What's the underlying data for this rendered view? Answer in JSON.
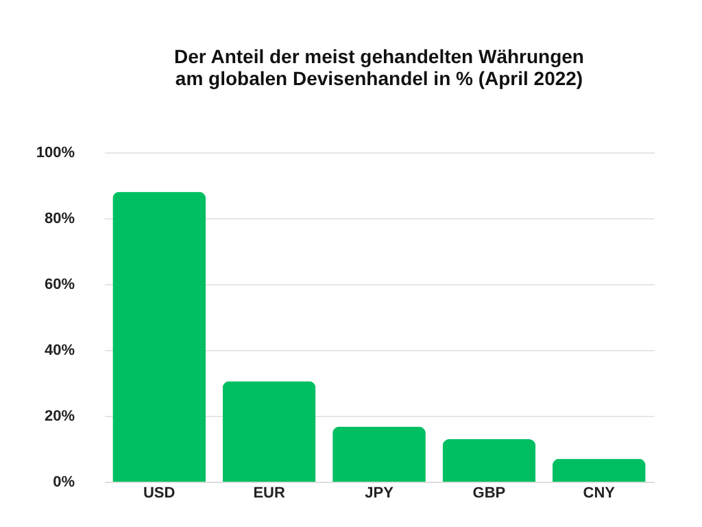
{
  "chart_data": {
    "type": "bar",
    "title": "Der Anteil der meist gehandelten Währungen\nam globalen Devisenhandel in % (April 2022)",
    "categories": [
      "USD",
      "EUR",
      "JPY",
      "GBP",
      "CNY"
    ],
    "values": [
      88,
      30.5,
      16.7,
      12.9,
      7
    ],
    "color": "#00bf63",
    "ylim": [
      0,
      100
    ],
    "yticks": [
      {
        "value": 0,
        "label": "0%"
      },
      {
        "value": 20,
        "label": "20%"
      },
      {
        "value": 40,
        "label": "40%"
      },
      {
        "value": 60,
        "label": "60%"
      },
      {
        "value": 80,
        "label": "80%"
      },
      {
        "value": 100,
        "label": "100%"
      }
    ],
    "grid": "y"
  }
}
